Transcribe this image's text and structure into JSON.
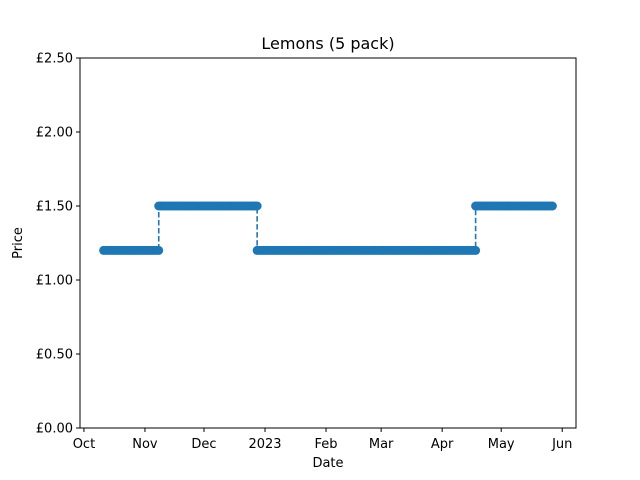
{
  "chart_data": {
    "type": "line",
    "title": "Lemons (5 pack)",
    "xlabel": "Date",
    "ylabel": "Price",
    "currency_symbol": "£",
    "ylim": [
      0,
      2.5
    ],
    "yticks": [
      0,
      0.5,
      1.0,
      1.5,
      2.0,
      2.5
    ],
    "ytick_labels": [
      "£0.00",
      "£0.50",
      "£1.00",
      "£1.50",
      "£2.00",
      "£2.50"
    ],
    "xlim": [
      "2022-09-29",
      "2023-06-08"
    ],
    "xticks": [
      "2022-10-01",
      "2022-11-01",
      "2022-12-01",
      "2023-01-01",
      "2023-02-01",
      "2023-03-01",
      "2023-04-01",
      "2023-05-01",
      "2023-06-01"
    ],
    "xtick_labels": [
      "Oct",
      "Nov",
      "Dec",
      "2023",
      "Feb",
      "Mar",
      "Apr",
      "May",
      "Jun"
    ],
    "grid": false,
    "line_style": "dashed",
    "marker": "circle",
    "color": "#1f77b4",
    "series": [
      {
        "segments": [
          {
            "start": "2022-10-11",
            "end": "2022-11-08",
            "price": 1.2
          },
          {
            "start": "2022-11-08",
            "end": "2022-12-28",
            "price": 1.5
          },
          {
            "start": "2022-12-28",
            "end": "2023-04-18",
            "price": 1.2
          },
          {
            "start": "2023-04-18",
            "end": "2023-05-27",
            "price": 1.5
          }
        ]
      }
    ]
  }
}
